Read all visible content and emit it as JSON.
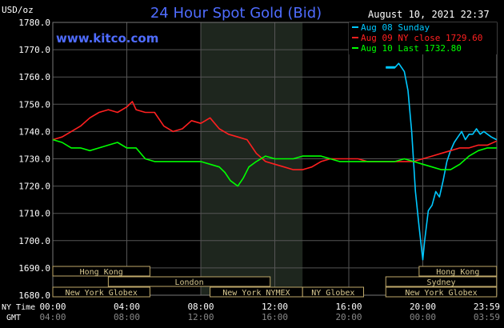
{
  "header": {
    "title": "24 Hour Spot Gold (Bid)",
    "timestamp": "August 10, 2021 22:37",
    "website": "www.kitco.com"
  },
  "legend": [
    {
      "label": "Aug 08 Sunday",
      "color": "#00c8ff"
    },
    {
      "label": "Aug 09 NY close 1729.60",
      "color": "#ff2020"
    },
    {
      "label": "Aug 10 Last 1732.80",
      "color": "#00ff00"
    }
  ],
  "chart_data": {
    "type": "line",
    "title": "24 Hour Spot Gold (Bid)",
    "ylabel": "USD/oz",
    "ylim": [
      1680,
      1780
    ],
    "yticks": [
      "1780.0",
      "1770.0",
      "1760.0",
      "1750.0",
      "1740.0",
      "1730.0",
      "1720.0",
      "1710.0",
      "1700.0",
      "1690.0",
      "1680.0"
    ],
    "xlim_hours": [
      0,
      24
    ],
    "x_ticks_ny": [
      "00:00",
      "04:00",
      "08:00",
      "12:00",
      "16:00",
      "20:00",
      "23:59"
    ],
    "x_ticks_gmt": [
      "04:00",
      "08:00",
      "12:00",
      "16:00",
      "20:00",
      "00:00",
      "03:59"
    ],
    "x_row_labels": [
      "NY Time",
      "GMT"
    ],
    "grid": true,
    "legend_position": "top-right",
    "series": [
      {
        "name": "Aug 08 Sunday",
        "color": "#00c8ff",
        "x": [
          18.0,
          18.5,
          18.7,
          19.0,
          19.2,
          19.4,
          19.6,
          19.8,
          20.0,
          20.1,
          20.3,
          20.5,
          20.7,
          20.9,
          21.1,
          21.3,
          21.5,
          21.7,
          21.9,
          22.1,
          22.3,
          22.5,
          22.7,
          22.9,
          23.1,
          23.3,
          23.5,
          23.7,
          23.99
        ],
        "values": [
          1763.5,
          1763.5,
          1765.0,
          1762.0,
          1755.0,
          1740.0,
          1718.0,
          1705.0,
          1693.0,
          1700.0,
          1711.0,
          1713.0,
          1718.0,
          1716.0,
          1722.0,
          1729.0,
          1733.0,
          1736.0,
          1738.0,
          1740.0,
          1737.0,
          1739.0,
          1739.0,
          1741.0,
          1739.0,
          1740.0,
          1739.0,
          1738.0,
          1737.0
        ]
      },
      {
        "name": "Aug 09 NY close 1729.60",
        "color": "#ff2020",
        "x": [
          0.0,
          0.5,
          1.0,
          1.5,
          2.0,
          2.5,
          3.0,
          3.5,
          4.0,
          4.3,
          4.5,
          5.0,
          5.5,
          6.0,
          6.5,
          7.0,
          7.5,
          8.0,
          8.5,
          9.0,
          9.5,
          10.0,
          10.5,
          11.0,
          11.5,
          12.0,
          12.5,
          13.0,
          13.5,
          14.0,
          14.5,
          15.0,
          15.5,
          16.0,
          16.5,
          17.0,
          17.5,
          18.0,
          18.5,
          19.0,
          19.5,
          20.0,
          20.5,
          21.0,
          21.5,
          22.0,
          22.5,
          23.0,
          23.5,
          23.99
        ],
        "values": [
          1737.0,
          1738.0,
          1740.0,
          1742.0,
          1745.0,
          1747.0,
          1748.0,
          1747.0,
          1749.0,
          1751.0,
          1748.0,
          1747.0,
          1747.0,
          1742.0,
          1740.0,
          1741.0,
          1744.0,
          1743.0,
          1745.0,
          1741.0,
          1739.0,
          1738.0,
          1737.0,
          1732.0,
          1729.0,
          1728.0,
          1727.0,
          1726.0,
          1726.0,
          1727.0,
          1729.0,
          1730.0,
          1730.0,
          1730.0,
          1730.0,
          1729.0,
          1729.0,
          1729.0,
          1729.0,
          1729.0,
          1729.0,
          1730.0,
          1731.0,
          1732.0,
          1733.0,
          1734.0,
          1734.0,
          1735.0,
          1735.0,
          1736.5
        ]
      },
      {
        "name": "Aug 10 Last 1732.80",
        "color": "#00ff00",
        "x": [
          0.0,
          0.5,
          1.0,
          1.5,
          2.0,
          2.5,
          3.0,
          3.5,
          4.0,
          4.5,
          5.0,
          5.5,
          6.0,
          6.5,
          7.0,
          7.5,
          8.0,
          8.5,
          9.0,
          9.3,
          9.6,
          10.0,
          10.3,
          10.6,
          11.0,
          11.5,
          12.0,
          12.5,
          13.0,
          13.5,
          14.0,
          14.5,
          15.0,
          15.5,
          16.0,
          16.5,
          17.0,
          17.5,
          18.0,
          18.5,
          19.0,
          19.5,
          20.0,
          20.5,
          21.0,
          21.5,
          22.0,
          22.5,
          23.0,
          23.5,
          23.99
        ],
        "values": [
          1737.0,
          1736.0,
          1734.0,
          1734.0,
          1733.0,
          1734.0,
          1735.0,
          1736.0,
          1734.0,
          1734.0,
          1730.0,
          1729.0,
          1729.0,
          1729.0,
          1729.0,
          1729.0,
          1729.0,
          1728.0,
          1727.0,
          1725.0,
          1722.0,
          1720.0,
          1723.0,
          1727.0,
          1729.0,
          1731.0,
          1730.0,
          1730.0,
          1730.0,
          1731.0,
          1731.0,
          1731.0,
          1730.0,
          1729.0,
          1729.0,
          1729.0,
          1729.0,
          1729.0,
          1729.0,
          1729.0,
          1730.0,
          1729.0,
          1728.0,
          1727.0,
          1726.0,
          1726.0,
          1728.0,
          1731.0,
          1733.0,
          1734.0,
          1734.0
        ]
      }
    ],
    "shaded_band_hours": [
      8,
      13.5
    ],
    "market_bars": [
      {
        "label": "Hong Kong",
        "start": 0,
        "end": 5.25,
        "row": 0
      },
      {
        "label": "London",
        "start": 3.0,
        "end": 11.75,
        "row": 1
      },
      {
        "label": "New York Globex",
        "start": 0,
        "end": 5.25,
        "row": 2
      },
      {
        "label": "New York NYMEX",
        "start": 8.5,
        "end": 13.5,
        "row": 2
      },
      {
        "label": "NY Globex",
        "start": 13.5,
        "end": 16.8,
        "row": 2
      },
      {
        "label": "Hong Kong",
        "start": 19.8,
        "end": 23.99,
        "row": 0
      },
      {
        "label": "Sydney",
        "start": 18.0,
        "end": 23.99,
        "row": 1
      },
      {
        "label": "New York Globex",
        "start": 18.0,
        "end": 23.99,
        "row": 2
      }
    ]
  }
}
